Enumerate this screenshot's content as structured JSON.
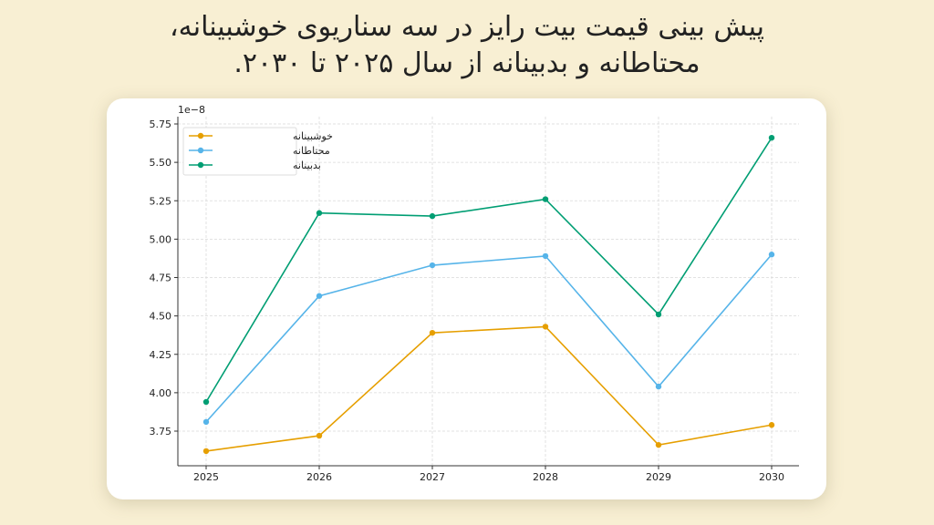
{
  "title": {
    "line1": "پیش بینی قیمت بیت رایز در سه سناریوی خوشبینانه،",
    "line2": "محتاطانه و بدبینانه از سال ۲۰۲۵ تا ۲۰۳۰."
  },
  "colors": {
    "background": "#f8efd3",
    "card": "#ffffff",
    "optimistic": "#e69f00",
    "cautious": "#56b4e9",
    "pessimistic": "#009e73"
  },
  "chart_data": {
    "type": "line",
    "title": "پیش بینی قیمت بیت رایز در سه سناریوی خوشبینانه، محتاطانه و بدبینانه از سال ۲۰۲۵ تا ۲۰۳۰.",
    "xlabel": "",
    "ylabel": "",
    "y_offset_label": "1e−8",
    "x": [
      2025,
      2026,
      2027,
      2028,
      2029,
      2030
    ],
    "x_tick_labels": [
      "2025",
      "2026",
      "2027",
      "2028",
      "2029",
      "2030"
    ],
    "y_ticks": [
      3.75,
      4.0,
      4.25,
      4.5,
      4.75,
      5.0,
      5.25,
      5.5,
      5.75
    ],
    "y_tick_labels": [
      "3.75",
      "4.00",
      "4.25",
      "4.50",
      "4.75",
      "5.00",
      "5.25",
      "5.50",
      "5.75"
    ],
    "ylim": [
      3.55,
      5.75
    ],
    "grid": true,
    "legend_position": "upper left",
    "series": [
      {
        "name": "خوشبینانه",
        "color": "#e69f00",
        "values": [
          3.62,
          3.72,
          4.39,
          4.43,
          3.66,
          3.79
        ]
      },
      {
        "name": "محتاطانه",
        "color": "#56b4e9",
        "values": [
          3.81,
          4.63,
          4.83,
          4.89,
          4.04,
          4.9
        ]
      },
      {
        "name": "بدبینانه",
        "color": "#009e73",
        "values": [
          3.94,
          5.17,
          5.15,
          5.26,
          4.51,
          5.66
        ]
      }
    ]
  }
}
